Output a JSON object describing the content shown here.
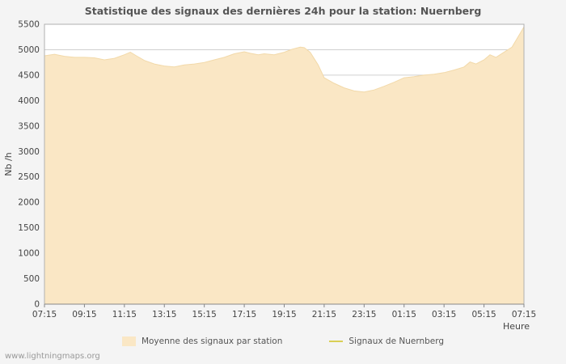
{
  "title": "Statistique des signaux des dernières 24h pour la station: Nuernberg",
  "watermark": "www.lightningmaps.org",
  "legend": {
    "area": {
      "label": "Moyenne des signaux par station",
      "color": "#fae7c5"
    },
    "line": {
      "label": "Signaux de Nuernberg",
      "color": "#d9cf55"
    }
  },
  "colors": {
    "plot_background": "#ffffff",
    "gridline": "#d0d0d0",
    "plot_border": "#b0b0b0",
    "axis": "#888888",
    "text": "#444444",
    "area_fill": "#fae7c5",
    "area_edge": "#f2d9a9"
  },
  "chart_data": {
    "type": "area",
    "title": "Statistique des signaux des dernières 24h pour la station: Nuernberg",
    "xlabel": "Heure",
    "ylabel": "Nb /h",
    "xlim": [
      0,
      24
    ],
    "ylim": [
      0,
      5500
    ],
    "y_tick_step": 500,
    "grid": true,
    "legend_position": "bottom",
    "x_ticks": [
      {
        "t": 0,
        "label": "07:15"
      },
      {
        "t": 2,
        "label": "09:15"
      },
      {
        "t": 4,
        "label": "11:15"
      },
      {
        "t": 6,
        "label": "13:15"
      },
      {
        "t": 8,
        "label": "15:15"
      },
      {
        "t": 10,
        "label": "17:15"
      },
      {
        "t": 12,
        "label": "19:15"
      },
      {
        "t": 14,
        "label": "21:15"
      },
      {
        "t": 16,
        "label": "23:15"
      },
      {
        "t": 18,
        "label": "01:15"
      },
      {
        "t": 20,
        "label": "03:15"
      },
      {
        "t": 22,
        "label": "05:15"
      },
      {
        "t": 24,
        "label": "07:15"
      }
    ],
    "series": [
      {
        "name": "Moyenne des signaux par station",
        "color": "#fae7c5",
        "edge_color": "#f2d9a9",
        "x": [
          0,
          0.5,
          1,
          1.5,
          2,
          2.5,
          3,
          3.5,
          4,
          4.3,
          4.6,
          5,
          5.5,
          6,
          6.5,
          7,
          7.5,
          8,
          8.5,
          9,
          9.5,
          10,
          10.3,
          10.7,
          11,
          11.5,
          12,
          12.4,
          12.8,
          13,
          13.3,
          13.7,
          14,
          14.5,
          15,
          15.5,
          16,
          16.5,
          17,
          17.5,
          18,
          18.5,
          19,
          19.5,
          20,
          20.5,
          21,
          21.3,
          21.6,
          22,
          22.3,
          22.6,
          23,
          23.4,
          23.7,
          23.9,
          24
        ],
        "values": [
          4880,
          4910,
          4870,
          4850,
          4850,
          4840,
          4800,
          4830,
          4900,
          4950,
          4880,
          4790,
          4720,
          4680,
          4660,
          4700,
          4720,
          4750,
          4800,
          4850,
          4920,
          4960,
          4930,
          4900,
          4920,
          4900,
          4950,
          5010,
          5050,
          5040,
          4950,
          4700,
          4450,
          4340,
          4250,
          4190,
          4170,
          4210,
          4280,
          4360,
          4450,
          4470,
          4500,
          4520,
          4550,
          4600,
          4660,
          4760,
          4720,
          4800,
          4900,
          4850,
          4950,
          5050,
          5250,
          5380,
          5450
        ]
      },
      {
        "name": "Signaux de Nuernberg",
        "color": "#d9cf55",
        "x": [],
        "values": []
      }
    ]
  }
}
